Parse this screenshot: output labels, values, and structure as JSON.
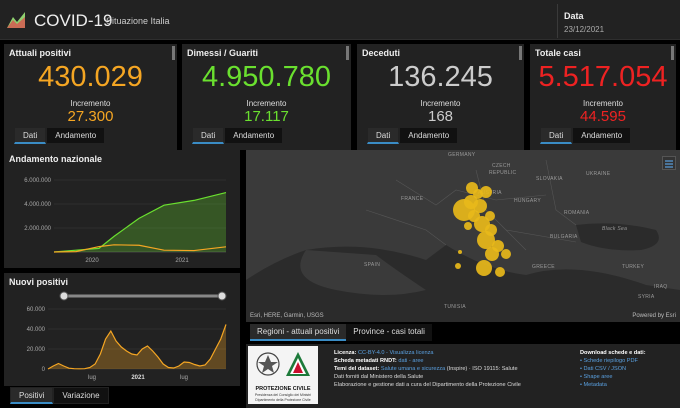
{
  "header": {
    "title": "COVID-19",
    "subtitle": "Situazione Italia",
    "date_label": "Data",
    "date_value": "23/12/2021"
  },
  "cards": [
    {
      "title": "Attuali positivi",
      "value": "430.029",
      "increment_label": "Incremento",
      "increment": "27.300",
      "color": "#f5a623",
      "inc_color": "#f5a623",
      "tabs": [
        "Dati",
        "Andamento"
      ]
    },
    {
      "title": "Dimessi / Guariti",
      "value": "4.950.780",
      "increment_label": "Incremento",
      "increment": "17.117",
      "color": "#6ae02f",
      "inc_color": "#6ae02f",
      "tabs": [
        "Dati",
        "Andamento"
      ]
    },
    {
      "title": "Deceduti",
      "value": "136.245",
      "increment_label": "Incremento",
      "increment": "168",
      "color": "#cccccc",
      "inc_color": "#cccccc",
      "tabs": [
        "Dati",
        "Andamento"
      ]
    },
    {
      "title": "Totale casi",
      "value": "5.517.054",
      "increment_label": "Incremento",
      "increment": "44.595",
      "color": "#ee2222",
      "inc_color": "#ee2222",
      "tabs": [
        "Dati",
        "Andamento"
      ]
    }
  ],
  "chart_national": {
    "title": "Andamento nazionale",
    "chart_data": {
      "type": "area",
      "x": [
        "2020-02",
        "2020-06",
        "2020-10",
        "2020-12",
        "2021-03",
        "2021-06",
        "2021-09",
        "2021-12"
      ],
      "x_tick_labels": [
        "2020",
        "2021"
      ],
      "y_tick_labels": [
        "6.000.000",
        "4.000.000",
        "2.000.000"
      ],
      "ylim": [
        0,
        6000000
      ],
      "series": [
        {
          "name": "",
          "color": "#6ae02f",
          "values": [
            0,
            150000,
            300000,
            1300000,
            2800000,
            3900000,
            4300000,
            4950780
          ]
        },
        {
          "name": "",
          "color": "#f5a623",
          "values": [
            0,
            30000,
            450000,
            600000,
            560000,
            150000,
            120000,
            430029
          ]
        }
      ]
    }
  },
  "chart_new": {
    "title": "Nuovi positivi",
    "tabs": [
      "Positivi",
      "Variazione"
    ],
    "chart_data": {
      "type": "area",
      "x_tick_labels": [
        "lug",
        "2021",
        "lug"
      ],
      "y_tick_labels": [
        "60.000",
        "40.000",
        "20.000",
        "0"
      ],
      "ylim": [
        0,
        60000
      ],
      "series": [
        {
          "name": "",
          "color": "#f5a623",
          "values": [
            0,
            3000,
            5500,
            3000,
            800,
            300,
            200,
            300,
            1500,
            5000,
            15000,
            30000,
            38000,
            28000,
            22000,
            18000,
            15000,
            14000,
            20000,
            23000,
            18000,
            12000,
            5000,
            1500,
            1000,
            3000,
            7000,
            6500,
            4500,
            3000,
            4000,
            10000,
            20000,
            30000,
            44595
          ]
        }
      ]
    }
  },
  "map": {
    "places": [
      "GERMANY",
      "CZECH",
      "REPUBLIC",
      "SLOVAKIA",
      "UKRAINE",
      "AUSTRIA",
      "HUNGARY",
      "FRANCE",
      "ROMANIA",
      "Black Sea",
      "BULGARIA",
      "SPAIN",
      "GREECE",
      "TURKEY",
      "TUNISIA",
      "SYRIA",
      "IRAQ"
    ],
    "attribution": "Esri, HERE, Garmin, USGS",
    "powered": "Powered by Esri",
    "dot_color": "#e8b81a"
  },
  "map_tabs": [
    "Regioni - attuali positivi",
    "Province - casi totali"
  ],
  "info": {
    "logo_text": "PROTEZIONE CIVILE",
    "logo_sub1": "Presidenza del Consiglio dei Ministri",
    "logo_sub2": "Dipartimento della Protezione Civile",
    "license_label": "Licenza:",
    "license_link": "CC-BY-4.0 - Visualizza licenza",
    "metadata_label": "Scheda metadati RNDT:",
    "metadata_link": "dati - aree",
    "themes_label": "Temi del dataset:",
    "themes_link": "Salute umana e sicurezza",
    "themes_rest": "(Inspire) · ISO 19115: Salute",
    "source": "Dati forniti dal Ministero della Salute",
    "elaboration": "Elaborazione e gestione dati a cura del Dipartimento della Protezione Civile",
    "download_title": "Download schede e dati:",
    "downloads": [
      "Schede riepilogo PDF",
      "Dati CSV / JSON",
      "Shape aree",
      "Metadata"
    ]
  }
}
